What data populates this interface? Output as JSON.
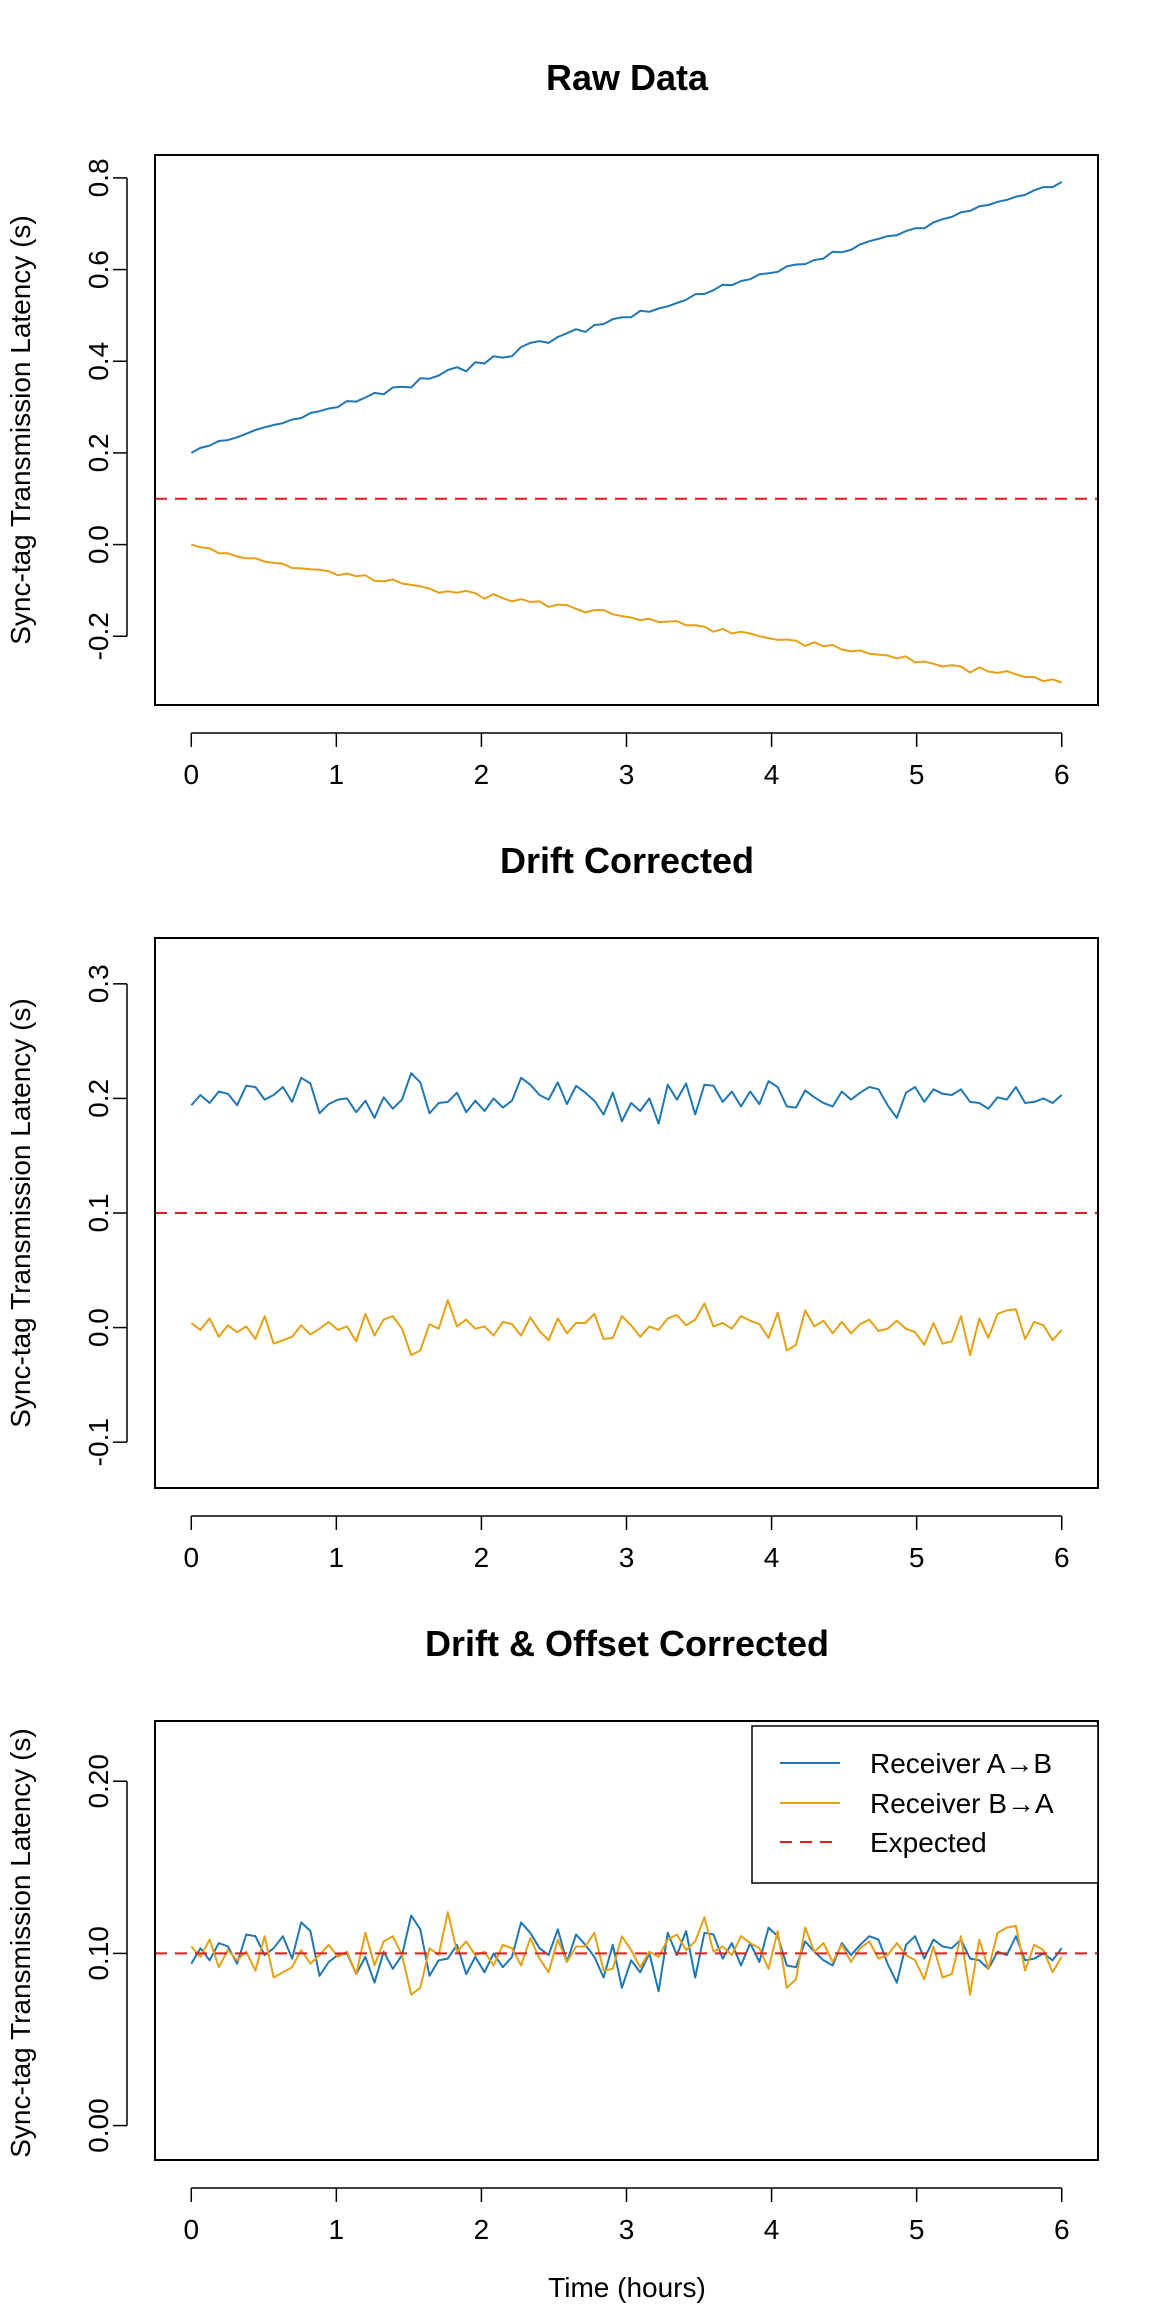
{
  "chart_data": [
    {
      "type": "line",
      "title": "Raw Data",
      "ylabel": "Sync-tag Transmission Latency (s)",
      "xlabel": "",
      "xlim": [
        -0.25,
        6.25
      ],
      "ylim": [
        -0.35,
        0.85
      ],
      "x_ticks": [
        "0",
        "1",
        "2",
        "3",
        "4",
        "5",
        "6"
      ],
      "y_ticks": [
        "-0.2",
        "0.0",
        "0.2",
        "0.4",
        "0.6",
        "0.8"
      ],
      "series": [
        {
          "color": "#1f77b4",
          "values": [
            0.2,
            0.211,
            0.216,
            0.226,
            0.228,
            0.234,
            0.242,
            0.25,
            0.256,
            0.261,
            0.265,
            0.273,
            0.276,
            0.287,
            0.291,
            0.297,
            0.3,
            0.313,
            0.312,
            0.321,
            0.331,
            0.328,
            0.343,
            0.344,
            0.343,
            0.363,
            0.362,
            0.369,
            0.381,
            0.387,
            0.378,
            0.398,
            0.395,
            0.411,
            0.408,
            0.411,
            0.431,
            0.44,
            0.444,
            0.44,
            0.453,
            0.461,
            0.47,
            0.464,
            0.479,
            0.481,
            0.492,
            0.496,
            0.496,
            0.51,
            0.508,
            0.515,
            0.52,
            0.527,
            0.534,
            0.546,
            0.547,
            0.555,
            0.567,
            0.566,
            0.575,
            0.579,
            0.59,
            0.592,
            0.595,
            0.607,
            0.611,
            0.612,
            0.621,
            0.624,
            0.639,
            0.638,
            0.643,
            0.655,
            0.662,
            0.667,
            0.673,
            0.675,
            0.684,
            0.69,
            0.69,
            0.703,
            0.71,
            0.715,
            0.725,
            0.728,
            0.738,
            0.741,
            0.748,
            0.752,
            0.759,
            0.763,
            0.773,
            0.78,
            0.78,
            0.791
          ]
        },
        {
          "color": "#e6a015",
          "values": [
            0.0,
            -0.006,
            -0.008,
            -0.019,
            -0.019,
            -0.026,
            -0.03,
            -0.03,
            -0.037,
            -0.04,
            -0.042,
            -0.051,
            -0.052,
            -0.054,
            -0.055,
            -0.058,
            -0.067,
            -0.063,
            -0.069,
            -0.067,
            -0.079,
            -0.08,
            -0.076,
            -0.085,
            -0.088,
            -0.091,
            -0.096,
            -0.105,
            -0.102,
            -0.105,
            -0.101,
            -0.106,
            -0.118,
            -0.108,
            -0.117,
            -0.124,
            -0.119,
            -0.125,
            -0.124,
            -0.136,
            -0.131,
            -0.132,
            -0.14,
            -0.148,
            -0.143,
            -0.143,
            -0.152,
            -0.156,
            -0.159,
            -0.165,
            -0.162,
            -0.169,
            -0.168,
            -0.167,
            -0.176,
            -0.176,
            -0.179,
            -0.19,
            -0.184,
            -0.194,
            -0.19,
            -0.194,
            -0.2,
            -0.204,
            -0.208,
            -0.207,
            -0.21,
            -0.221,
            -0.213,
            -0.222,
            -0.219,
            -0.229,
            -0.233,
            -0.231,
            -0.238,
            -0.24,
            -0.242,
            -0.248,
            -0.244,
            -0.257,
            -0.255,
            -0.26,
            -0.266,
            -0.263,
            -0.266,
            -0.279,
            -0.268,
            -0.277,
            -0.28,
            -0.276,
            -0.283,
            -0.289,
            -0.289,
            -0.298,
            -0.294,
            -0.301
          ]
        },
        {
          "color": "#e41a1c",
          "dashed": true,
          "values": [
            0.1,
            0.1
          ]
        }
      ]
    },
    {
      "type": "line",
      "title": "Drift Corrected",
      "ylabel": "Sync-tag Transmission Latency (s)",
      "xlabel": "",
      "xlim": [
        -0.25,
        6.25
      ],
      "ylim": [
        -0.14,
        0.34
      ],
      "x_ticks": [
        "0",
        "1",
        "2",
        "3",
        "4",
        "5",
        "6"
      ],
      "y_ticks": [
        "-0.1",
        "0.0",
        "0.1",
        "0.2",
        "0.3"
      ],
      "series": [
        {
          "color": "#1f77b4",
          "values": [
            0.194,
            0.203,
            0.196,
            0.206,
            0.204,
            0.194,
            0.211,
            0.21,
            0.199,
            0.203,
            0.21,
            0.197,
            0.218,
            0.213,
            0.187,
            0.195,
            0.199,
            0.2,
            0.188,
            0.198,
            0.183,
            0.201,
            0.191,
            0.199,
            0.222,
            0.214,
            0.187,
            0.196,
            0.197,
            0.205,
            0.188,
            0.198,
            0.189,
            0.2,
            0.192,
            0.198,
            0.218,
            0.212,
            0.203,
            0.199,
            0.214,
            0.195,
            0.211,
            0.205,
            0.198,
            0.186,
            0.205,
            0.18,
            0.196,
            0.189,
            0.2,
            0.178,
            0.212,
            0.199,
            0.213,
            0.186,
            0.212,
            0.211,
            0.197,
            0.206,
            0.193,
            0.206,
            0.195,
            0.215,
            0.21,
            0.193,
            0.192,
            0.207,
            0.201,
            0.196,
            0.193,
            0.206,
            0.199,
            0.205,
            0.21,
            0.208,
            0.194,
            0.183,
            0.205,
            0.21,
            0.197,
            0.208,
            0.204,
            0.203,
            0.208,
            0.197,
            0.196,
            0.191,
            0.201,
            0.199,
            0.21,
            0.196,
            0.197,
            0.2,
            0.196,
            0.203
          ]
        },
        {
          "color": "#e6a015",
          "values": [
            0.004,
            -0.002,
            0.008,
            -0.008,
            0.002,
            -0.004,
            0.001,
            -0.01,
            0.01,
            -0.014,
            -0.011,
            -0.008,
            0.002,
            -0.006,
            -0.001,
            0.005,
            -0.002,
            0.001,
            -0.012,
            0.012,
            -0.007,
            0.007,
            0.01,
            -0.001,
            -0.024,
            -0.02,
            0.003,
            -0.001,
            0.024,
            0.001,
            0.007,
            -0.001,
            0.001,
            -0.007,
            0.005,
            0.003,
            -0.007,
            0.009,
            -0.003,
            -0.011,
            0.008,
            -0.005,
            0.004,
            0.004,
            0.012,
            -0.01,
            -0.009,
            0.01,
            0.002,
            -0.008,
            0.001,
            -0.002,
            0.008,
            0.011,
            0.002,
            0.007,
            0.021,
            0.001,
            0.004,
            -0.001,
            0.01,
            0.006,
            0.003,
            -0.009,
            0.013,
            -0.02,
            -0.015,
            0.015,
            0.001,
            0.006,
            -0.005,
            0.005,
            -0.005,
            0.003,
            0.007,
            -0.003,
            -0.001,
            0.006,
            -0.001,
            -0.004,
            -0.015,
            0.004,
            -0.014,
            -0.012,
            0.01,
            -0.024,
            0.008,
            -0.009,
            0.012,
            0.015,
            0.016,
            -0.01,
            0.005,
            0.002,
            -0.011,
            -0.002
          ]
        },
        {
          "color": "#e41a1c",
          "dashed": true,
          "values": [
            0.1,
            0.1
          ]
        }
      ]
    },
    {
      "type": "line",
      "title": "Drift & Offset Corrected",
      "ylabel": "Sync-tag Transmission Latency (s)",
      "xlabel": "Time (hours)",
      "xlim": [
        -0.25,
        6.25
      ],
      "ylim": [
        -0.02,
        0.235
      ],
      "x_ticks": [
        "0",
        "1",
        "2",
        "3",
        "4",
        "5",
        "6"
      ],
      "y_ticks": [
        "0.00",
        "0.10",
        "0.20"
      ],
      "legend_position": "top-right",
      "legend": [
        {
          "label": "Receiver A→B",
          "color": "#1f77b4",
          "style": "solid"
        },
        {
          "label": "Receiver B→A",
          "color": "#e6a015",
          "style": "solid"
        },
        {
          "label": "Expected",
          "color": "#e41a1c",
          "style": "dashed"
        }
      ],
      "series": [
        {
          "color": "#1f77b4",
          "values": [
            0.094,
            0.103,
            0.096,
            0.106,
            0.104,
            0.094,
            0.111,
            0.11,
            0.099,
            0.103,
            0.11,
            0.097,
            0.118,
            0.113,
            0.087,
            0.095,
            0.099,
            0.1,
            0.088,
            0.098,
            0.083,
            0.101,
            0.091,
            0.099,
            0.122,
            0.114,
            0.087,
            0.096,
            0.097,
            0.105,
            0.088,
            0.098,
            0.089,
            0.1,
            0.092,
            0.098,
            0.118,
            0.112,
            0.103,
            0.099,
            0.114,
            0.095,
            0.111,
            0.105,
            0.098,
            0.086,
            0.105,
            0.08,
            0.096,
            0.089,
            0.1,
            0.078,
            0.112,
            0.099,
            0.113,
            0.086,
            0.112,
            0.111,
            0.097,
            0.106,
            0.093,
            0.106,
            0.095,
            0.115,
            0.11,
            0.093,
            0.092,
            0.107,
            0.101,
            0.096,
            0.093,
            0.106,
            0.099,
            0.105,
            0.11,
            0.108,
            0.094,
            0.083,
            0.105,
            0.11,
            0.097,
            0.108,
            0.104,
            0.103,
            0.108,
            0.097,
            0.096,
            0.091,
            0.101,
            0.099,
            0.11,
            0.096,
            0.097,
            0.1,
            0.096,
            0.103
          ]
        },
        {
          "color": "#e6a015",
          "values": [
            0.104,
            0.098,
            0.108,
            0.092,
            0.102,
            0.096,
            0.101,
            0.09,
            0.11,
            0.086,
            0.089,
            0.092,
            0.102,
            0.094,
            0.099,
            0.105,
            0.098,
            0.101,
            0.088,
            0.112,
            0.093,
            0.107,
            0.11,
            0.099,
            0.076,
            0.08,
            0.103,
            0.099,
            0.124,
            0.101,
            0.107,
            0.099,
            0.101,
            0.093,
            0.105,
            0.103,
            0.093,
            0.109,
            0.097,
            0.089,
            0.108,
            0.095,
            0.104,
            0.104,
            0.112,
            0.09,
            0.091,
            0.11,
            0.102,
            0.092,
            0.101,
            0.098,
            0.108,
            0.111,
            0.102,
            0.107,
            0.121,
            0.101,
            0.104,
            0.099,
            0.11,
            0.106,
            0.103,
            0.091,
            0.113,
            0.08,
            0.085,
            0.115,
            0.101,
            0.106,
            0.095,
            0.105,
            0.095,
            0.103,
            0.107,
            0.097,
            0.099,
            0.106,
            0.099,
            0.096,
            0.085,
            0.104,
            0.086,
            0.088,
            0.11,
            0.076,
            0.108,
            0.091,
            0.112,
            0.115,
            0.116,
            0.09,
            0.105,
            0.102,
            0.089,
            0.098
          ]
        },
        {
          "color": "#e41a1c",
          "dashed": true,
          "values": [
            0.1,
            0.1
          ]
        }
      ]
    }
  ]
}
